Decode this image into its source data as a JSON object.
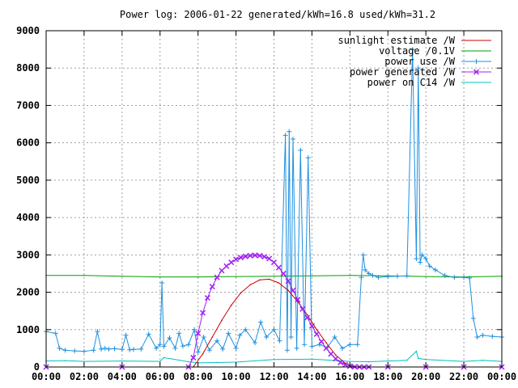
{
  "chart_data": {
    "type": "line",
    "title": "Power log: 2006-01-22 generated/kWh=16.8 used/kWh=31.2",
    "xlim": [
      0,
      24
    ],
    "ylim": [
      0,
      9000
    ],
    "x_ticks": [
      "00:00",
      "02:00",
      "04:00",
      "06:00",
      "08:00",
      "10:00",
      "12:00",
      "14:00",
      "16:00",
      "18:00",
      "20:00",
      "22:00",
      "00:00"
    ],
    "y_ticks": [
      "0",
      "1000",
      "2000",
      "3000",
      "4000",
      "5000",
      "6000",
      "7000",
      "8000",
      "9000"
    ],
    "grid": true,
    "legend_position": "top-right",
    "series": [
      {
        "name": "sunlight estimate /W",
        "color": "#cc0000",
        "marker": "none",
        "x": [
          7.75,
          8.25,
          8.75,
          9.25,
          9.75,
          10.25,
          10.75,
          11.25,
          11.75,
          12.25,
          12.75,
          13.25,
          13.75,
          14.25,
          14.75,
          15.25,
          15.75,
          16.25
        ],
        "y": [
          0,
          350,
          800,
          1250,
          1650,
          1980,
          2200,
          2330,
          2350,
          2250,
          2050,
          1750,
          1400,
          1000,
          650,
          320,
          100,
          0
        ]
      },
      {
        "name": "voltage /0.1V",
        "color": "#00a000",
        "marker": "none",
        "x": [
          0,
          2,
          4,
          6,
          8,
          10,
          12,
          14,
          16,
          18,
          20,
          22,
          24
        ],
        "y": [
          2450,
          2450,
          2430,
          2410,
          2410,
          2420,
          2430,
          2440,
          2450,
          2440,
          2420,
          2410,
          2430
        ]
      },
      {
        "name": "power use /W",
        "color": "#1e90e0",
        "marker": "plus",
        "x": [
          0,
          0.5,
          0.7,
          1.0,
          1.5,
          2.0,
          2.5,
          2.7,
          2.9,
          3.1,
          3.3,
          3.6,
          4.0,
          4.2,
          4.4,
          4.6,
          5.0,
          5.4,
          5.8,
          6.0,
          6.1,
          6.2,
          6.5,
          6.8,
          7.0,
          7.2,
          7.5,
          7.8,
          8.0,
          8.3,
          8.6,
          9.0,
          9.3,
          9.6,
          10.0,
          10.2,
          10.5,
          11.0,
          11.3,
          11.6,
          12.0,
          12.3,
          12.6,
          12.7,
          12.8,
          12.9,
          13.0,
          13.2,
          13.4,
          13.6,
          13.8,
          14.0,
          14.4,
          14.8,
          15.2,
          15.6,
          16.0,
          16.4,
          16.6,
          16.7,
          16.8,
          17.0,
          17.2,
          17.5,
          18.0,
          18.5,
          19.0,
          19.3,
          19.5,
          19.6,
          19.7,
          19.8,
          20.0,
          20.2,
          20.5,
          21.0,
          21.5,
          22.0,
          22.3,
          22.5,
          22.7,
          23.0,
          23.5,
          24.0
        ],
        "y": [
          950,
          900,
          500,
          450,
          430,
          420,
          450,
          950,
          480,
          500,
          480,
          490,
          470,
          850,
          460,
          470,
          480,
          880,
          500,
          600,
          2250,
          550,
          780,
          500,
          900,
          560,
          600,
          1000,
          400,
          800,
          450,
          700,
          480,
          900,
          500,
          850,
          1000,
          650,
          1200,
          800,
          1000,
          700,
          6200,
          450,
          6300,
          800,
          6100,
          500,
          5800,
          600,
          5600,
          550,
          600,
          520,
          800,
          500,
          600,
          600,
          2400,
          3000,
          2600,
          2500,
          2450,
          2400,
          2420,
          2430,
          2440,
          8500,
          2900,
          8000,
          2800,
          3000,
          2900,
          2700,
          2600,
          2450,
          2400,
          2400,
          2380,
          1300,
          800,
          850,
          820,
          800
        ]
      },
      {
        "name": "power generated /W",
        "color": "#a020f0",
        "marker": "cross",
        "x": [
          0,
          4,
          7.5,
          7.75,
          8.0,
          8.25,
          8.5,
          8.75,
          9.0,
          9.25,
          9.5,
          9.75,
          10.0,
          10.25,
          10.5,
          10.75,
          11.0,
          11.25,
          11.5,
          11.75,
          12.0,
          12.25,
          12.5,
          12.75,
          13.0,
          13.25,
          13.5,
          13.75,
          14.0,
          14.25,
          14.5,
          14.75,
          15.0,
          15.25,
          15.5,
          15.75,
          16.0,
          16.25,
          16.5,
          16.75,
          17.0,
          18,
          20,
          22,
          24
        ],
        "y": [
          0,
          0,
          0,
          250,
          900,
          1450,
          1850,
          2150,
          2400,
          2580,
          2700,
          2800,
          2880,
          2930,
          2960,
          2980,
          2990,
          2980,
          2950,
          2900,
          2800,
          2660,
          2500,
          2300,
          2050,
          1800,
          1550,
          1320,
          1100,
          880,
          680,
          500,
          350,
          220,
          120,
          60,
          20,
          5,
          0,
          0,
          0,
          0,
          0,
          0,
          0
        ]
      },
      {
        "name": "power on C14 /W",
        "color": "#00c0c0",
        "marker": "none",
        "x": [
          0,
          1,
          2,
          4,
          6,
          6.2,
          7.5,
          8.0,
          9,
          10,
          12,
          14,
          16,
          17,
          18,
          19,
          19.5,
          19.6,
          20,
          22,
          23,
          24
        ],
        "y": [
          160,
          170,
          150,
          160,
          150,
          250,
          140,
          110,
          120,
          130,
          200,
          210,
          150,
          140,
          160,
          180,
          420,
          230,
          200,
          150,
          180,
          150
        ]
      }
    ]
  }
}
